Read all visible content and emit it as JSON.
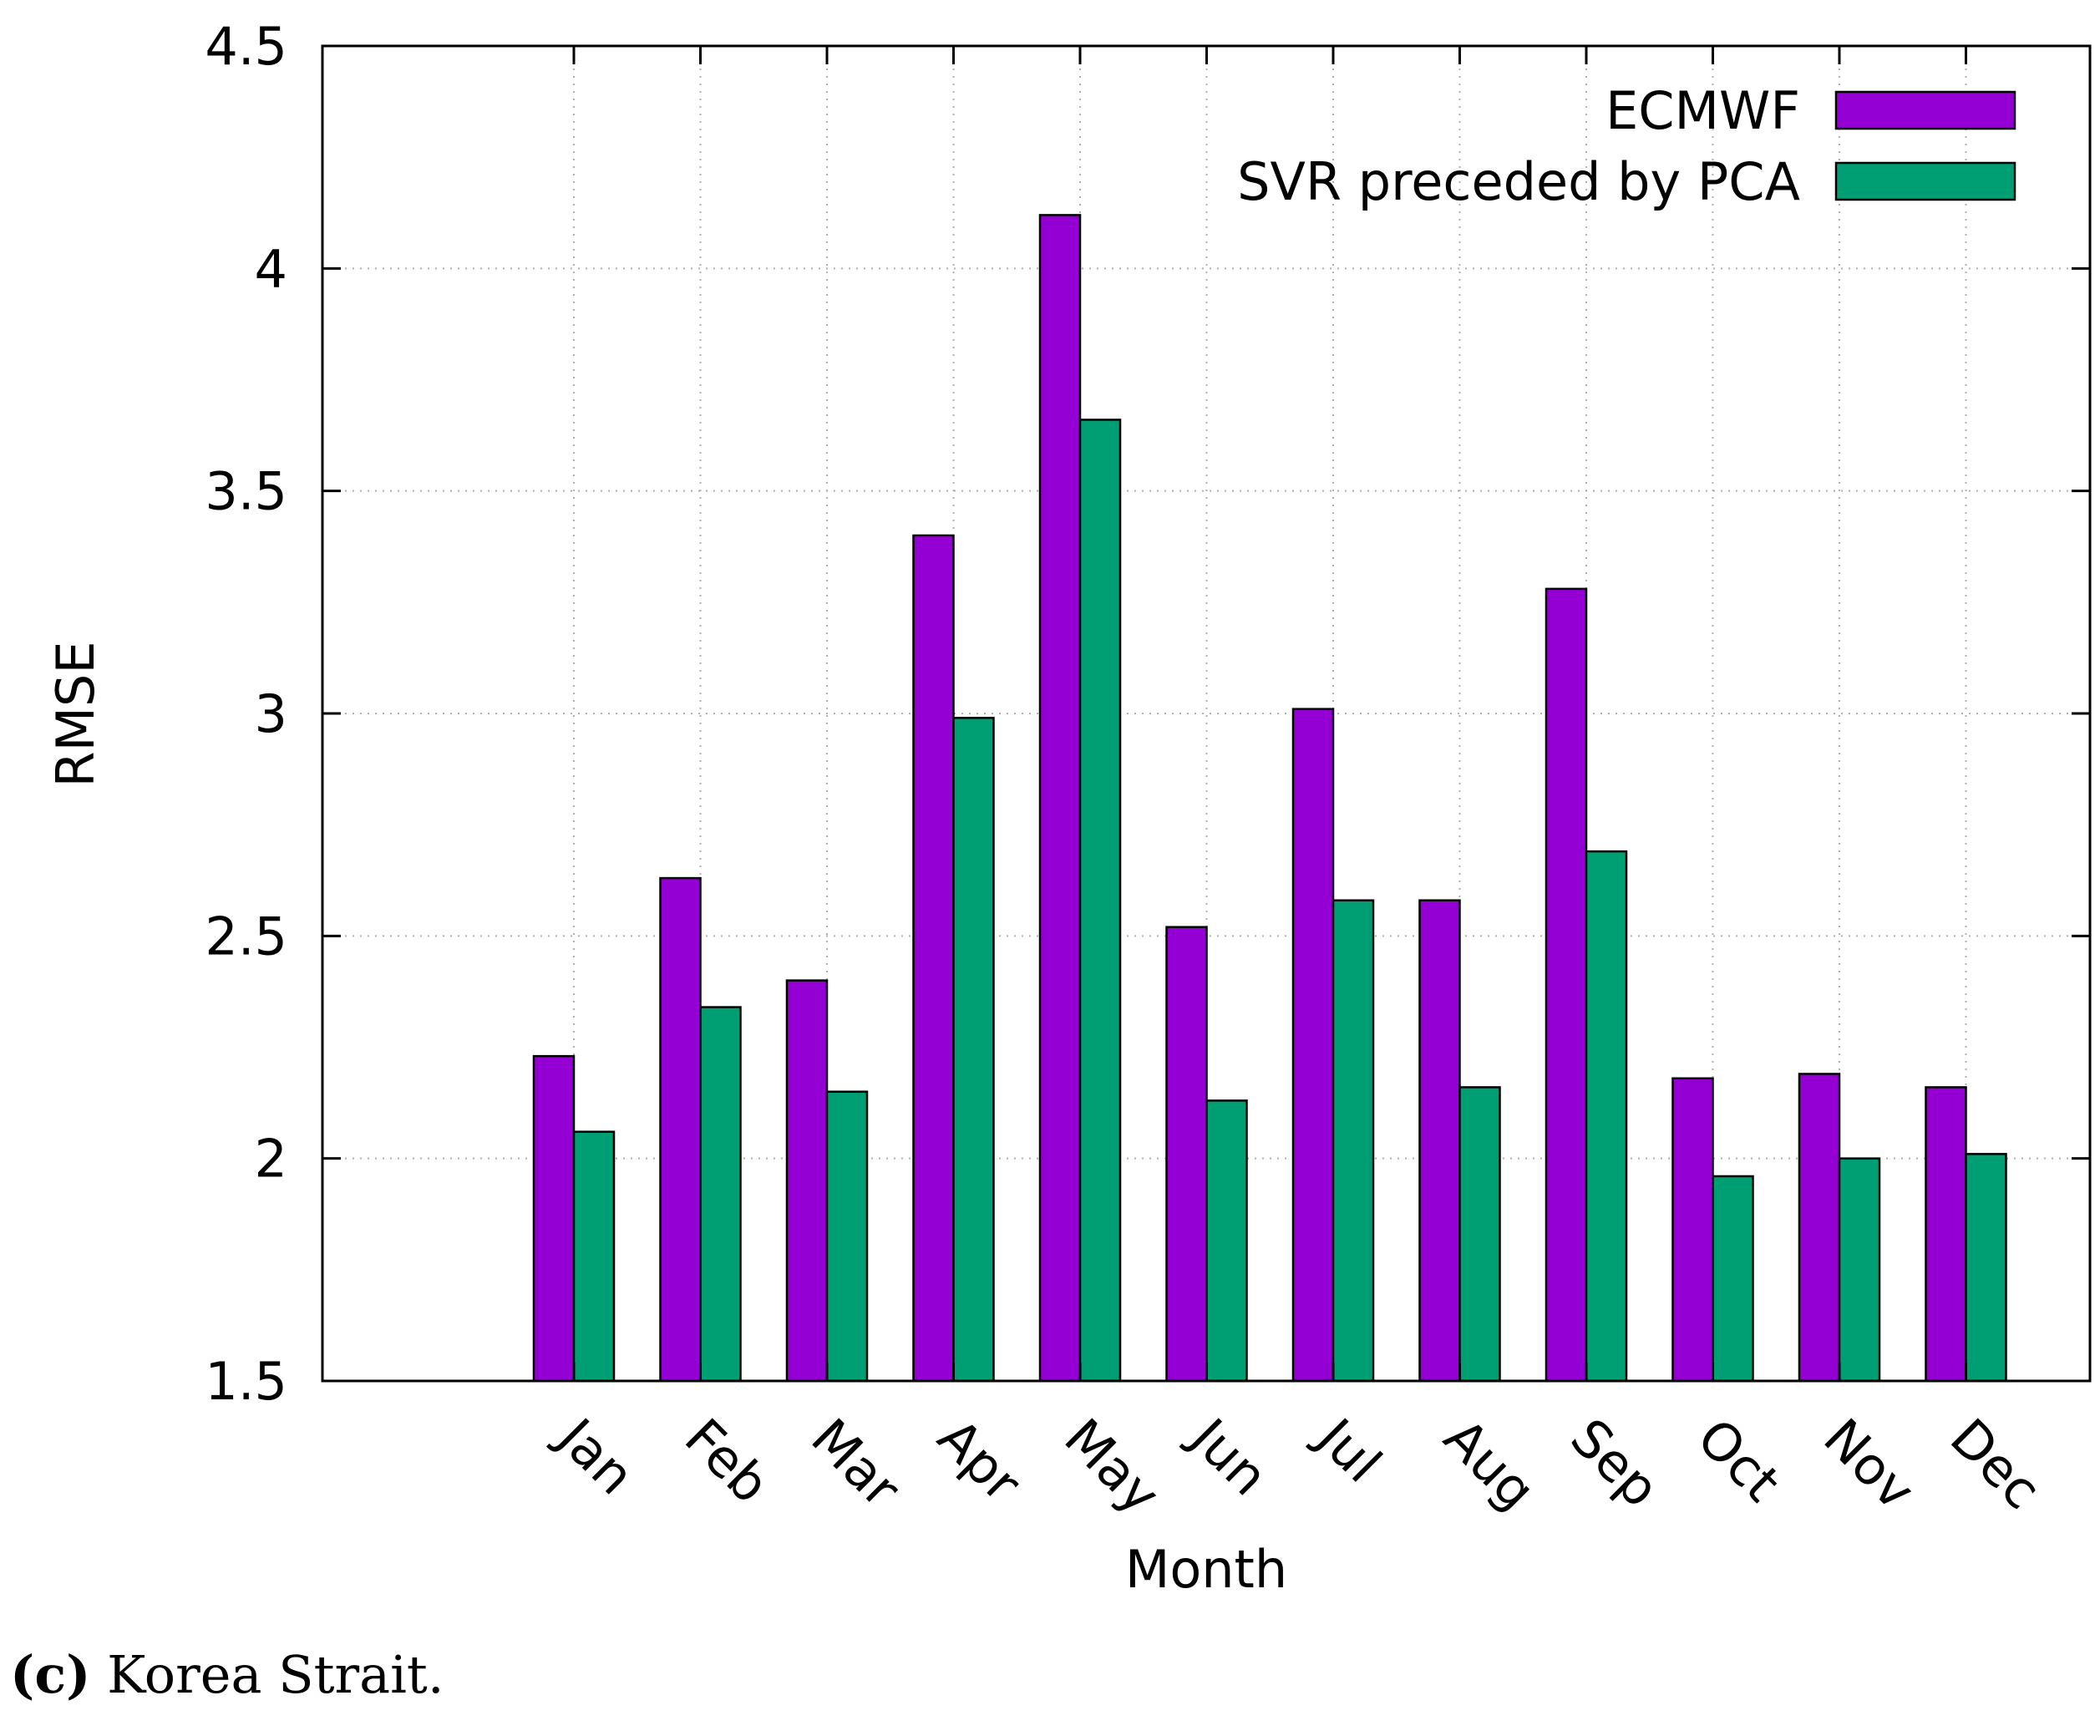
{
  "chart_data": {
    "type": "bar",
    "title": "",
    "xlabel": "Month",
    "ylabel": "RMSE",
    "categories": [
      "Jan",
      "Feb",
      "Mar",
      "Apr",
      "May",
      "Jun",
      "Jul",
      "Aug",
      "Sep",
      "Oct",
      "Nov",
      "Dec"
    ],
    "series": [
      {
        "name": "ECMWF",
        "color": "#9400d3",
        "values": [
          2.23,
          2.63,
          2.4,
          3.4,
          4.12,
          2.52,
          3.01,
          2.58,
          3.28,
          2.18,
          2.19,
          2.16
        ]
      },
      {
        "name": "SVR preceded by PCA",
        "color": "#009e73",
        "values": [
          2.06,
          2.34,
          2.15,
          2.99,
          3.66,
          2.13,
          2.58,
          2.16,
          2.69,
          1.96,
          2.0,
          2.01
        ]
      }
    ],
    "ylim": [
      1.5,
      4.5
    ],
    "yticks": [
      "1.5",
      "2",
      "2.5",
      "3",
      "3.5",
      "4",
      "4.5"
    ],
    "grid": true,
    "legend_position": "top-right"
  },
  "caption": {
    "label": "(c)",
    "text": " Korea Strait."
  }
}
